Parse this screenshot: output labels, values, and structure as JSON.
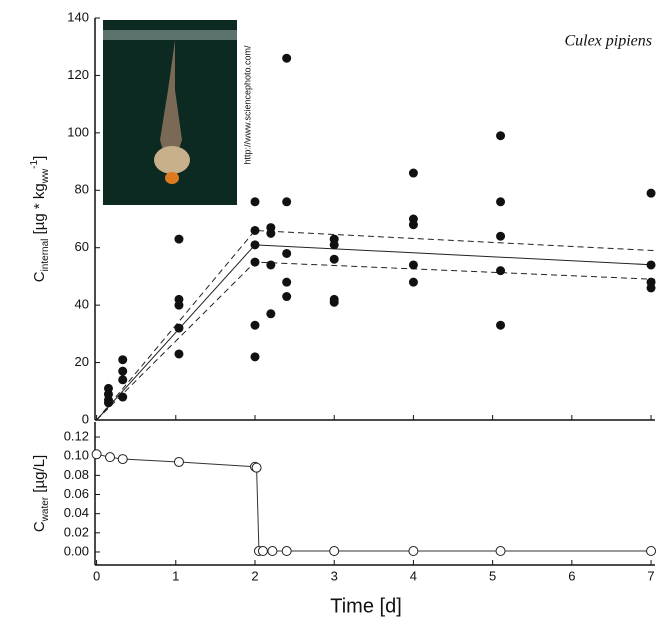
{
  "chart_data": [
    {
      "type": "scatter",
      "annotation": "Culex pipiens",
      "inset_caption": "http://www.sciencephoto.com/",
      "ylabel_main": "C",
      "ylabel_sub": "internal",
      "ylabel_unit": "[µg * kg",
      "ylabel_unit_sub": "ww",
      "ylabel_unit_sup": "-1",
      "ylabel_end": "]",
      "x": [
        0.15,
        0.15,
        0.15,
        0.15,
        0.33,
        0.33,
        0.33,
        0.33,
        1.04,
        1.04,
        1.04,
        1.04,
        1.04,
        2.0,
        2.0,
        2.0,
        2.0,
        2.0,
        2.0,
        2.2,
        2.2,
        2.2,
        2.2,
        2.4,
        2.4,
        2.4,
        2.4,
        2.4,
        3.0,
        3.0,
        3.0,
        3.0,
        3.0,
        4.0,
        4.0,
        4.0,
        4.0,
        4.0,
        5.1,
        5.1,
        5.1,
        5.1,
        5.1,
        7.0,
        7.0,
        7.0,
        7.0
      ],
      "values": [
        11,
        9,
        7,
        6,
        21,
        17,
        14,
        8,
        63,
        42,
        40,
        32,
        23,
        76,
        66,
        61,
        55,
        33,
        22,
        67,
        65,
        54,
        37,
        126,
        76,
        58,
        48,
        43,
        63,
        61,
        56,
        42,
        41,
        86,
        70,
        68,
        54,
        48,
        99,
        76,
        64,
        52,
        33,
        79,
        54,
        48,
        46
      ],
      "color": "#111111",
      "model_lines": [
        {
          "style": "dashed",
          "x": [
            0,
            2,
            7.05
          ],
          "values": [
            0,
            66,
            59
          ]
        },
        {
          "style": "solid",
          "x": [
            0,
            2,
            7.05
          ],
          "values": [
            0,
            61,
            54
          ]
        },
        {
          "style": "dashed",
          "x": [
            0,
            2,
            7.05
          ],
          "values": [
            0,
            55,
            49
          ]
        }
      ],
      "xlim": [
        -0.02,
        7.05
      ],
      "ylim": [
        0,
        140
      ],
      "yticks": [
        0,
        20,
        40,
        60,
        80,
        100,
        120,
        140
      ]
    },
    {
      "type": "line",
      "ylabel_main": "C",
      "ylabel_sub": "water",
      "ylabel_unit": "[µg/L]",
      "xlabel": "Time [d]",
      "x": [
        0,
        0.17,
        0.33,
        1.04,
        2.0,
        2.02,
        2.05,
        2.1,
        2.22,
        2.4,
        3.0,
        4.0,
        5.1,
        7.0
      ],
      "values": [
        0.102,
        0.099,
        0.097,
        0.094,
        0.089,
        0.088,
        0.001,
        0.001,
        0.001,
        0.001,
        0.001,
        0.001,
        0.001,
        0.001
      ],
      "color": "#333333",
      "xlim": [
        -0.02,
        7.05
      ],
      "xticks": [
        0,
        1,
        2,
        3,
        4,
        5,
        6,
        7
      ],
      "ylim": [
        -0.0136,
        0.1357
      ],
      "yticks": [
        {
          "value": 0,
          "label": "0.00"
        },
        {
          "value": 0.02,
          "label": "0.02"
        },
        {
          "value": 0.04,
          "label": "0.04"
        },
        {
          "value": 0.06,
          "label": "0.06"
        },
        {
          "value": 0.08,
          "label": "0.08"
        },
        {
          "value": 0.1,
          "label": "0.10"
        },
        {
          "value": 0.12,
          "label": "0.12"
        }
      ]
    }
  ]
}
